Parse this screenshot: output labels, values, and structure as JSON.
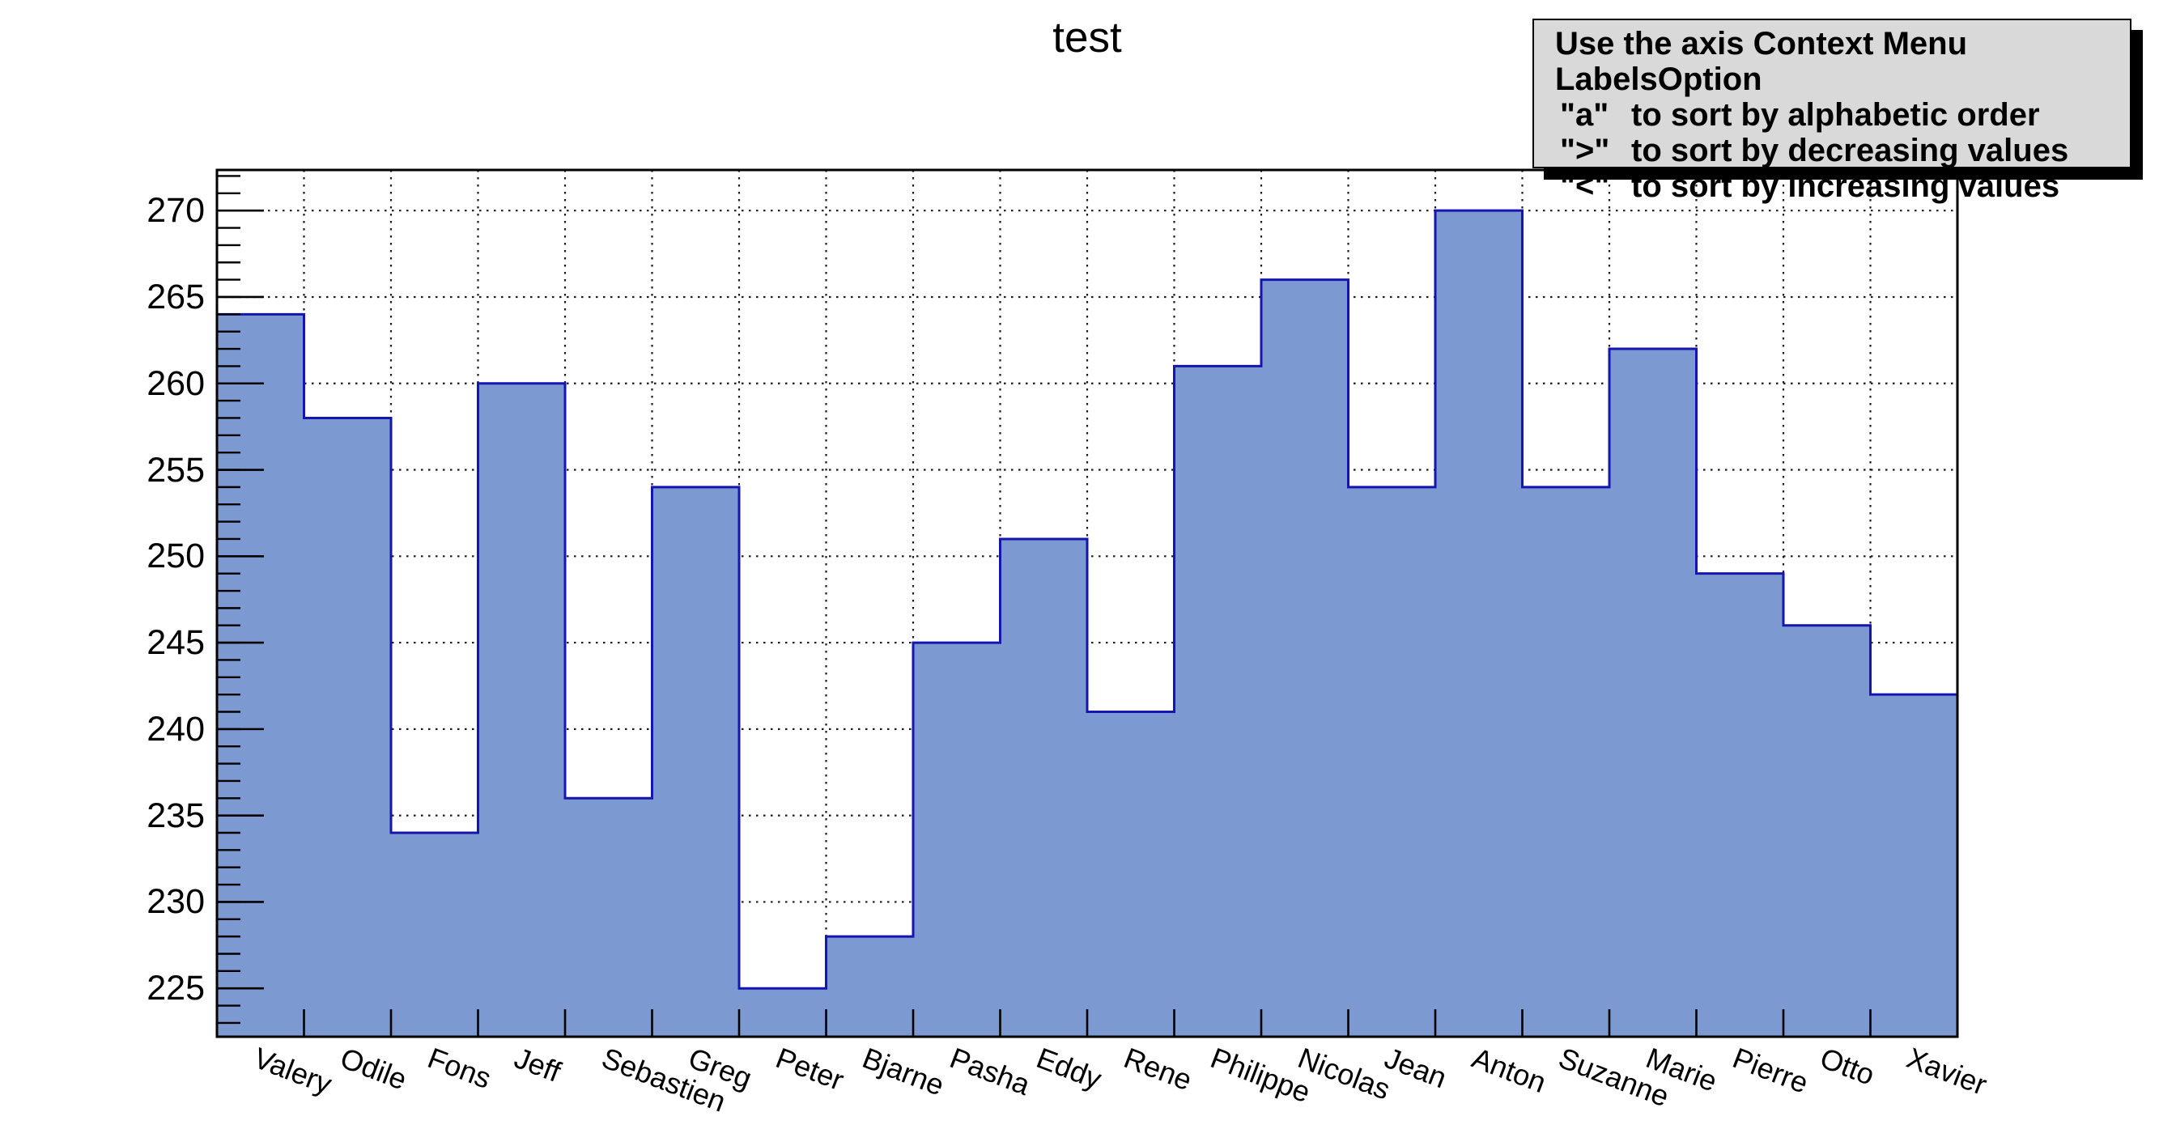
{
  "title": "test",
  "info_box": {
    "title": "Use the axis Context Menu LabelsOption",
    "items": [
      {
        "key": "\"a\"",
        "text": "to sort by alphabetic order"
      },
      {
        "key": "\">\"",
        "text": "to sort by decreasing values"
      },
      {
        "key": "\"<\"",
        "text": "to sort by increasing values"
      }
    ],
    "bg_color": "#d9d9d9",
    "border_color": "#000000",
    "shadow_color": "#000000"
  },
  "chart_data": {
    "type": "bar",
    "title": "test",
    "categories": [
      "Valery",
      "Odile",
      "Fons",
      "Jeff",
      "Sebastien",
      "Greg",
      "Peter",
      "Bjarne",
      "Pasha",
      "Eddy",
      "Rene",
      "Philippe",
      "Nicolas",
      "Jean",
      "Anton",
      "Suzanne",
      "Marie",
      "Pierre",
      "Otto",
      "Xavier"
    ],
    "values": [
      264,
      258,
      234,
      260,
      236,
      254,
      225,
      228,
      245,
      251,
      241,
      261,
      266,
      254,
      270,
      254,
      262,
      249,
      246,
      242
    ],
    "xlabel": "",
    "ylabel": "",
    "ylim": [
      222.2,
      272.35
    ],
    "yticks": [
      225,
      230,
      235,
      240,
      245,
      250,
      255,
      260,
      265,
      270
    ],
    "minor_tick_step": 1,
    "grid": "dotted",
    "grid_color": "#1a1a1a",
    "bar_fill": "#7d99d1",
    "bar_stroke": "#1515b0",
    "frame_color": "#000000",
    "label_rotation_deg": 21
  }
}
